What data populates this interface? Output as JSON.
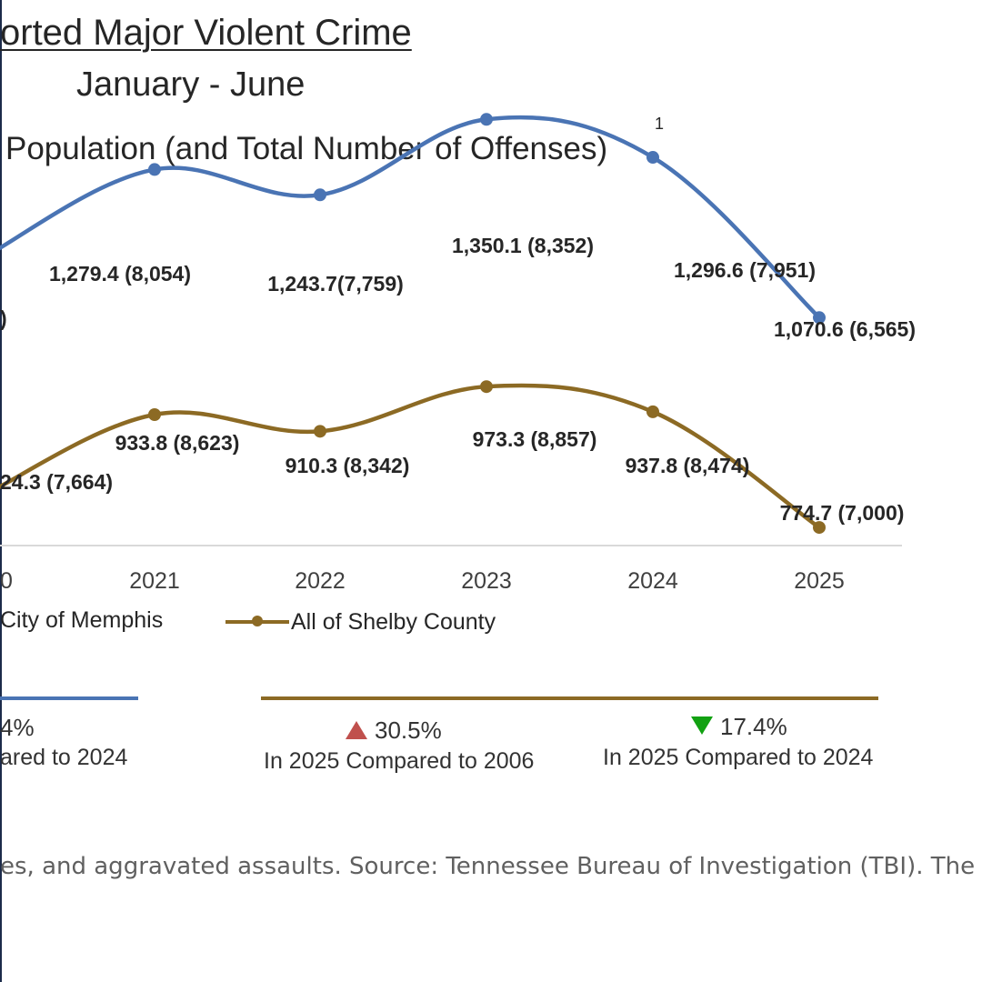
{
  "header": {
    "title": "orted Major Violent Crime",
    "subtitle": "January - June",
    "chart_subtitle": "Population (and Total Number of Offenses)",
    "footnote_marker": "1"
  },
  "chart_data": {
    "type": "line",
    "title": "orted Major Violent Crime",
    "subtitle": "January - June",
    "ylabel": "Population (and Total Number of Offenses)",
    "categories": [
      "0",
      "2021",
      "2022",
      "2023",
      "2024",
      "2025"
    ],
    "series": [
      {
        "name": "City of Memphis",
        "color": "#4a74b4",
        "values": [
          1160,
          1279.4,
          1243.7,
          1350.1,
          1296.6,
          1070.6
        ],
        "labels": [
          ")",
          "1,279.4 (8,054)",
          "1,243.7(7,759)",
          "1,350.1 (8,352)",
          "1,296.6 (7,951)",
          "1,070.6 (6,565)"
        ]
      },
      {
        "name": "All of Shelby County",
        "color": "#8c6a24",
        "values": [
          824.3,
          933.8,
          910.3,
          973.3,
          937.8,
          774.7
        ],
        "labels": [
          "24.3 (7,664)",
          "933.8 (8,623)",
          "910.3 (8,342)",
          "973.3 (8,857)",
          "937.8 (8,474)",
          "774.7 (7,000)"
        ]
      }
    ],
    "grid": false,
    "legend_position": "bottom"
  },
  "legend": {
    "memphis_label": "City of Memphis",
    "shelby_label": "All of Shelby County"
  },
  "stats": {
    "memphis": {
      "value": "4%",
      "caption": "ared to 2024"
    },
    "shelby_2006": {
      "value": "30.5%",
      "direction": "up",
      "caption": "In 2025 Compared to 2006"
    },
    "shelby_2024": {
      "value": "17.4%",
      "direction": "down",
      "caption": "In 2025 Compared to 2024"
    }
  },
  "source": "es, and aggravated assaults. Source: Tennessee Bureau of Investigation (TBI). The"
}
